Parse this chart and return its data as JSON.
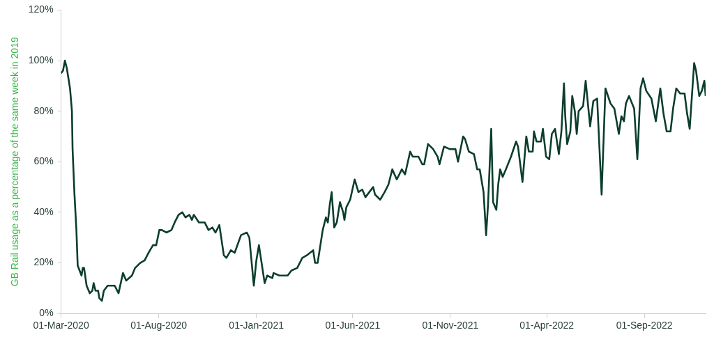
{
  "chart_data": {
    "type": "line",
    "ylabel": "GB Rail usage as a percentage of the same week in 2019",
    "legend": false,
    "grid": false,
    "marker": "none",
    "line_style": "solid",
    "xlim": [
      "2020-03-01",
      "2022-12-06"
    ],
    "xticks": [
      {
        "value": "2020-03-01",
        "label": "01-Mar-2020"
      },
      {
        "value": "2020-08-01",
        "label": "01-Aug-2020"
      },
      {
        "value": "2021-01-01",
        "label": "01-Jan-2021"
      },
      {
        "value": "2021-06-01",
        "label": "01-Jun-2021"
      },
      {
        "value": "2021-11-01",
        "label": "01-Nov-2021"
      },
      {
        "value": "2022-04-01",
        "label": "01-Apr-2022"
      },
      {
        "value": "2022-09-01",
        "label": "01-Sep-2022"
      }
    ],
    "ylim": [
      0,
      120
    ],
    "yticks": [
      {
        "value": 0,
        "label": "0%"
      },
      {
        "value": 20,
        "label": "20%"
      },
      {
        "value": 40,
        "label": "40%"
      },
      {
        "value": 60,
        "label": "60%"
      },
      {
        "value": 80,
        "label": "80%"
      },
      {
        "value": 100,
        "label": "100%"
      },
      {
        "value": 120,
        "label": "120%"
      }
    ],
    "series": [
      {
        "color": "#0b3d2e",
        "x": [
          "2020-03-01",
          "2020-03-04",
          "2020-03-07",
          "2020-03-10",
          "2020-03-15",
          "2020-03-18",
          "2020-03-19",
          "2020-03-22",
          "2020-03-25",
          "2020-03-27",
          "2020-04-02",
          "2020-04-04",
          "2020-04-06",
          "2020-04-10",
          "2020-04-15",
          "2020-04-19",
          "2020-04-21",
          "2020-04-24",
          "2020-04-28",
          "2020-04-30",
          "2020-05-04",
          "2020-05-07",
          "2020-05-13",
          "2020-05-19",
          "2020-05-24",
          "2020-05-30",
          "2020-06-06",
          "2020-06-11",
          "2020-06-20",
          "2020-06-25",
          "2020-07-03",
          "2020-07-10",
          "2020-07-16",
          "2020-07-23",
          "2020-07-28",
          "2020-08-02",
          "2020-08-06",
          "2020-08-13",
          "2020-08-21",
          "2020-08-26",
          "2020-09-01",
          "2020-09-07",
          "2020-09-12",
          "2020-09-18",
          "2020-09-22",
          "2020-09-25",
          "2020-10-03",
          "2020-10-12",
          "2020-10-18",
          "2020-10-24",
          "2020-10-29",
          "2020-11-04",
          "2020-11-11",
          "2020-11-15",
          "2020-11-22",
          "2020-11-28",
          "2020-12-08",
          "2020-12-17",
          "2020-12-21",
          "2020-12-28",
          "2021-01-01",
          "2021-01-05",
          "2021-01-11",
          "2021-01-14",
          "2021-01-18",
          "2021-01-26",
          "2021-01-28",
          "2021-02-06",
          "2021-02-13",
          "2021-02-19",
          "2021-02-25",
          "2021-03-06",
          "2021-03-14",
          "2021-03-21",
          "2021-03-31",
          "2021-04-03",
          "2021-04-07",
          "2021-04-15",
          "2021-04-20",
          "2021-04-23",
          "2021-04-26",
          "2021-04-29",
          "2021-05-03",
          "2021-05-07",
          "2021-05-12",
          "2021-05-17",
          "2021-05-19",
          "2021-05-22",
          "2021-05-28",
          "2021-06-04",
          "2021-06-10",
          "2021-06-16",
          "2021-06-21",
          "2021-07-03",
          "2021-07-06",
          "2021-07-14",
          "2021-07-21",
          "2021-07-27",
          "2021-08-02",
          "2021-08-09",
          "2021-08-17",
          "2021-08-22",
          "2021-08-30",
          "2021-09-03",
          "2021-09-12",
          "2021-09-18",
          "2021-09-21",
          "2021-09-27",
          "2021-10-05",
          "2021-10-12",
          "2021-10-15",
          "2021-10-22",
          "2021-10-31",
          "2021-11-09",
          "2021-11-13",
          "2021-11-21",
          "2021-11-24",
          "2021-11-30",
          "2021-12-08",
          "2021-12-13",
          "2021-12-17",
          "2021-12-23",
          "2021-12-27",
          "2021-12-30",
          "2022-01-04",
          "2022-01-07",
          "2022-01-12",
          "2022-01-15",
          "2022-01-18",
          "2022-01-22",
          "2022-01-27",
          "2022-02-04",
          "2022-02-12",
          "2022-02-15",
          "2022-02-22",
          "2022-02-28",
          "2022-03-04",
          "2022-03-10",
          "2022-03-12",
          "2022-03-16",
          "2022-03-23",
          "2022-03-26",
          "2022-03-31",
          "2022-04-05",
          "2022-04-09",
          "2022-04-14",
          "2022-04-20",
          "2022-04-24",
          "2022-04-28",
          "2022-04-30",
          "2022-05-03",
          "2022-05-08",
          "2022-05-11",
          "2022-05-15",
          "2022-05-18",
          "2022-05-21",
          "2022-05-28",
          "2022-06-01",
          "2022-06-08",
          "2022-06-13",
          "2022-06-19",
          "2022-06-26",
          "2022-07-02",
          "2022-07-10",
          "2022-07-16",
          "2022-07-23",
          "2022-07-27",
          "2022-07-31",
          "2022-08-03",
          "2022-08-08",
          "2022-08-16",
          "2022-08-21",
          "2022-08-26",
          "2022-08-30",
          "2022-09-04",
          "2022-09-12",
          "2022-09-19",
          "2022-09-26",
          "2022-10-01",
          "2022-10-06",
          "2022-10-12",
          "2022-10-16",
          "2022-10-21",
          "2022-10-27",
          "2022-11-03",
          "2022-11-07",
          "2022-11-11",
          "2022-11-18",
          "2022-11-21",
          "2022-11-26",
          "2022-11-30",
          "2022-12-04",
          "2022-12-06"
        ],
        "values": [
          95,
          96,
          100,
          97,
          89,
          80,
          65,
          47,
          33,
          19,
          15,
          18,
          18,
          11,
          8,
          9,
          12,
          9,
          9,
          6,
          5,
          9,
          11,
          11,
          11,
          8,
          16,
          13,
          15,
          18,
          20,
          21,
          24,
          27,
          27,
          33,
          33,
          32,
          33,
          36,
          39,
          40,
          38,
          39,
          37,
          39,
          36,
          36,
          33,
          34,
          32,
          35,
          23,
          22,
          25,
          24,
          31,
          32,
          30,
          11,
          21,
          27,
          17,
          12,
          15,
          14,
          16,
          15,
          15,
          15,
          17,
          18,
          22,
          23,
          25,
          20,
          20,
          33,
          38,
          36,
          43,
          48,
          34,
          36,
          44,
          40,
          37,
          42,
          45,
          53,
          48,
          49,
          46,
          50,
          47,
          45,
          48,
          51,
          57,
          53,
          57,
          55,
          64,
          62,
          62,
          59,
          59,
          67,
          65,
          62,
          59,
          66,
          65,
          65,
          60,
          70,
          69,
          64,
          63,
          57,
          57,
          48,
          31,
          43,
          73,
          44,
          41,
          51,
          57,
          54,
          57,
          62,
          68,
          66,
          52,
          70,
          64,
          64,
          72,
          68,
          68,
          73,
          62,
          61,
          71,
          73,
          63,
          72,
          91,
          78,
          67,
          72,
          86,
          80,
          71,
          80,
          82,
          92,
          74,
          84,
          85,
          47,
          89,
          83,
          81,
          71,
          78,
          76,
          83,
          86,
          81,
          61,
          89,
          93,
          88,
          85,
          76,
          89,
          79,
          72,
          72,
          81,
          89,
          87,
          87,
          79,
          73,
          99,
          96,
          86,
          88,
          92,
          86
        ]
      }
    ]
  }
}
